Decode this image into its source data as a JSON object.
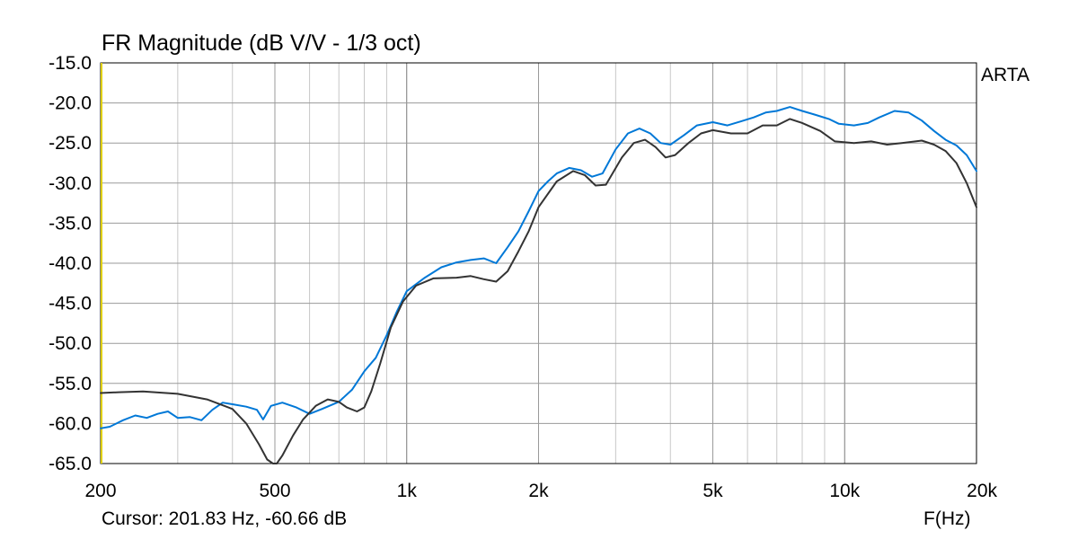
{
  "chart_data": {
    "type": "line",
    "title": "FR Magnitude (dB V/V - 1/3 oct)",
    "xlabel": "F(Hz)",
    "ylabel": "",
    "x_scale": "log",
    "xlim": [
      200,
      20000
    ],
    "ylim": [
      -65,
      -15
    ],
    "grid": true,
    "y_ticks": [
      "-15.0",
      "-20.0",
      "-25.0",
      "-30.0",
      "-35.0",
      "-40.0",
      "-45.0",
      "-50.0",
      "-55.0",
      "-60.0",
      "-65.0"
    ],
    "x_ticks": [
      {
        "value": 200,
        "label": "200"
      },
      {
        "value": 500,
        "label": "500"
      },
      {
        "value": 1000,
        "label": "1k"
      },
      {
        "value": 2000,
        "label": "2k"
      },
      {
        "value": 5000,
        "label": "5k"
      },
      {
        "value": 10000,
        "label": "10k"
      },
      {
        "value": 20000,
        "label": "20k"
      }
    ],
    "brand": "ARTA",
    "cursor_text": "Cursor: 201.83 Hz, -60.66 dB",
    "series": [
      {
        "color": "#0078d7",
        "points": [
          [
            200,
            -60.6
          ],
          [
            210,
            -60.4
          ],
          [
            225,
            -59.6
          ],
          [
            240,
            -59.0
          ],
          [
            255,
            -59.3
          ],
          [
            270,
            -58.8
          ],
          [
            285,
            -58.5
          ],
          [
            300,
            -59.3
          ],
          [
            320,
            -59.2
          ],
          [
            340,
            -59.6
          ],
          [
            360,
            -58.3
          ],
          [
            380,
            -57.4
          ],
          [
            400,
            -57.6
          ],
          [
            430,
            -57.9
          ],
          [
            455,
            -58.3
          ],
          [
            470,
            -59.5
          ],
          [
            490,
            -57.8
          ],
          [
            520,
            -57.4
          ],
          [
            560,
            -58.0
          ],
          [
            600,
            -58.8
          ],
          [
            640,
            -58.2
          ],
          [
            700,
            -57.3
          ],
          [
            750,
            -55.8
          ],
          [
            800,
            -53.5
          ],
          [
            850,
            -51.8
          ],
          [
            900,
            -49.0
          ],
          [
            950,
            -46.0
          ],
          [
            1000,
            -43.5
          ],
          [
            1100,
            -41.8
          ],
          [
            1200,
            -40.5
          ],
          [
            1300,
            -39.9
          ],
          [
            1400,
            -39.6
          ],
          [
            1500,
            -39.4
          ],
          [
            1600,
            -40.0
          ],
          [
            1700,
            -38.0
          ],
          [
            1800,
            -36.0
          ],
          [
            1900,
            -33.5
          ],
          [
            2000,
            -31.0
          ],
          [
            2100,
            -29.8
          ],
          [
            2200,
            -28.8
          ],
          [
            2350,
            -28.1
          ],
          [
            2500,
            -28.4
          ],
          [
            2650,
            -29.2
          ],
          [
            2800,
            -28.8
          ],
          [
            3000,
            -25.8
          ],
          [
            3200,
            -23.8
          ],
          [
            3400,
            -23.2
          ],
          [
            3600,
            -23.8
          ],
          [
            3800,
            -25.0
          ],
          [
            4000,
            -25.2
          ],
          [
            4300,
            -24.0
          ],
          [
            4600,
            -22.8
          ],
          [
            5000,
            -22.4
          ],
          [
            5400,
            -22.8
          ],
          [
            5800,
            -22.3
          ],
          [
            6200,
            -21.8
          ],
          [
            6600,
            -21.2
          ],
          [
            7000,
            -21.0
          ],
          [
            7500,
            -20.5
          ],
          [
            8000,
            -21.0
          ],
          [
            8600,
            -21.5
          ],
          [
            9200,
            -22.0
          ],
          [
            9700,
            -22.6
          ],
          [
            10500,
            -22.8
          ],
          [
            11300,
            -22.5
          ],
          [
            12000,
            -21.8
          ],
          [
            13000,
            -21.0
          ],
          [
            14000,
            -21.2
          ],
          [
            15000,
            -22.2
          ],
          [
            16000,
            -23.5
          ],
          [
            17000,
            -24.6
          ],
          [
            18000,
            -25.3
          ],
          [
            19000,
            -26.5
          ],
          [
            20000,
            -28.5
          ]
        ]
      },
      {
        "color": "#333333",
        "points": [
          [
            200,
            -56.2
          ],
          [
            220,
            -56.1
          ],
          [
            250,
            -56.0
          ],
          [
            300,
            -56.3
          ],
          [
            350,
            -57.0
          ],
          [
            400,
            -58.2
          ],
          [
            430,
            -60.0
          ],
          [
            460,
            -62.6
          ],
          [
            480,
            -64.5
          ],
          [
            495,
            -65.0
          ],
          [
            505,
            -65.0
          ],
          [
            520,
            -64.0
          ],
          [
            550,
            -61.5
          ],
          [
            580,
            -59.5
          ],
          [
            620,
            -57.8
          ],
          [
            660,
            -57.0
          ],
          [
            700,
            -57.3
          ],
          [
            730,
            -58.0
          ],
          [
            770,
            -58.5
          ],
          [
            800,
            -58.0
          ],
          [
            830,
            -56.0
          ],
          [
            870,
            -52.5
          ],
          [
            920,
            -48.0
          ],
          [
            980,
            -44.8
          ],
          [
            1050,
            -42.8
          ],
          [
            1150,
            -41.9
          ],
          [
            1300,
            -41.8
          ],
          [
            1400,
            -41.6
          ],
          [
            1500,
            -42.0
          ],
          [
            1600,
            -42.3
          ],
          [
            1700,
            -41.0
          ],
          [
            1800,
            -38.5
          ],
          [
            1900,
            -36.0
          ],
          [
            2000,
            -33.0
          ],
          [
            2200,
            -29.8
          ],
          [
            2400,
            -28.5
          ],
          [
            2550,
            -29.0
          ],
          [
            2700,
            -30.3
          ],
          [
            2850,
            -30.2
          ],
          [
            3100,
            -26.8
          ],
          [
            3300,
            -25.0
          ],
          [
            3500,
            -24.6
          ],
          [
            3700,
            -25.5
          ],
          [
            3900,
            -26.8
          ],
          [
            4100,
            -26.5
          ],
          [
            4400,
            -25.0
          ],
          [
            4700,
            -23.8
          ],
          [
            5000,
            -23.4
          ],
          [
            5500,
            -23.8
          ],
          [
            6000,
            -23.8
          ],
          [
            6500,
            -22.8
          ],
          [
            7000,
            -22.8
          ],
          [
            7500,
            -22.0
          ],
          [
            8000,
            -22.5
          ],
          [
            8800,
            -23.5
          ],
          [
            9500,
            -24.8
          ],
          [
            10500,
            -25.0
          ],
          [
            11500,
            -24.8
          ],
          [
            12500,
            -25.2
          ],
          [
            13500,
            -25.0
          ],
          [
            15000,
            -24.7
          ],
          [
            16000,
            -25.2
          ],
          [
            17000,
            -26.0
          ],
          [
            18000,
            -27.5
          ],
          [
            19000,
            -30.0
          ],
          [
            20000,
            -33.0
          ]
        ]
      }
    ]
  }
}
